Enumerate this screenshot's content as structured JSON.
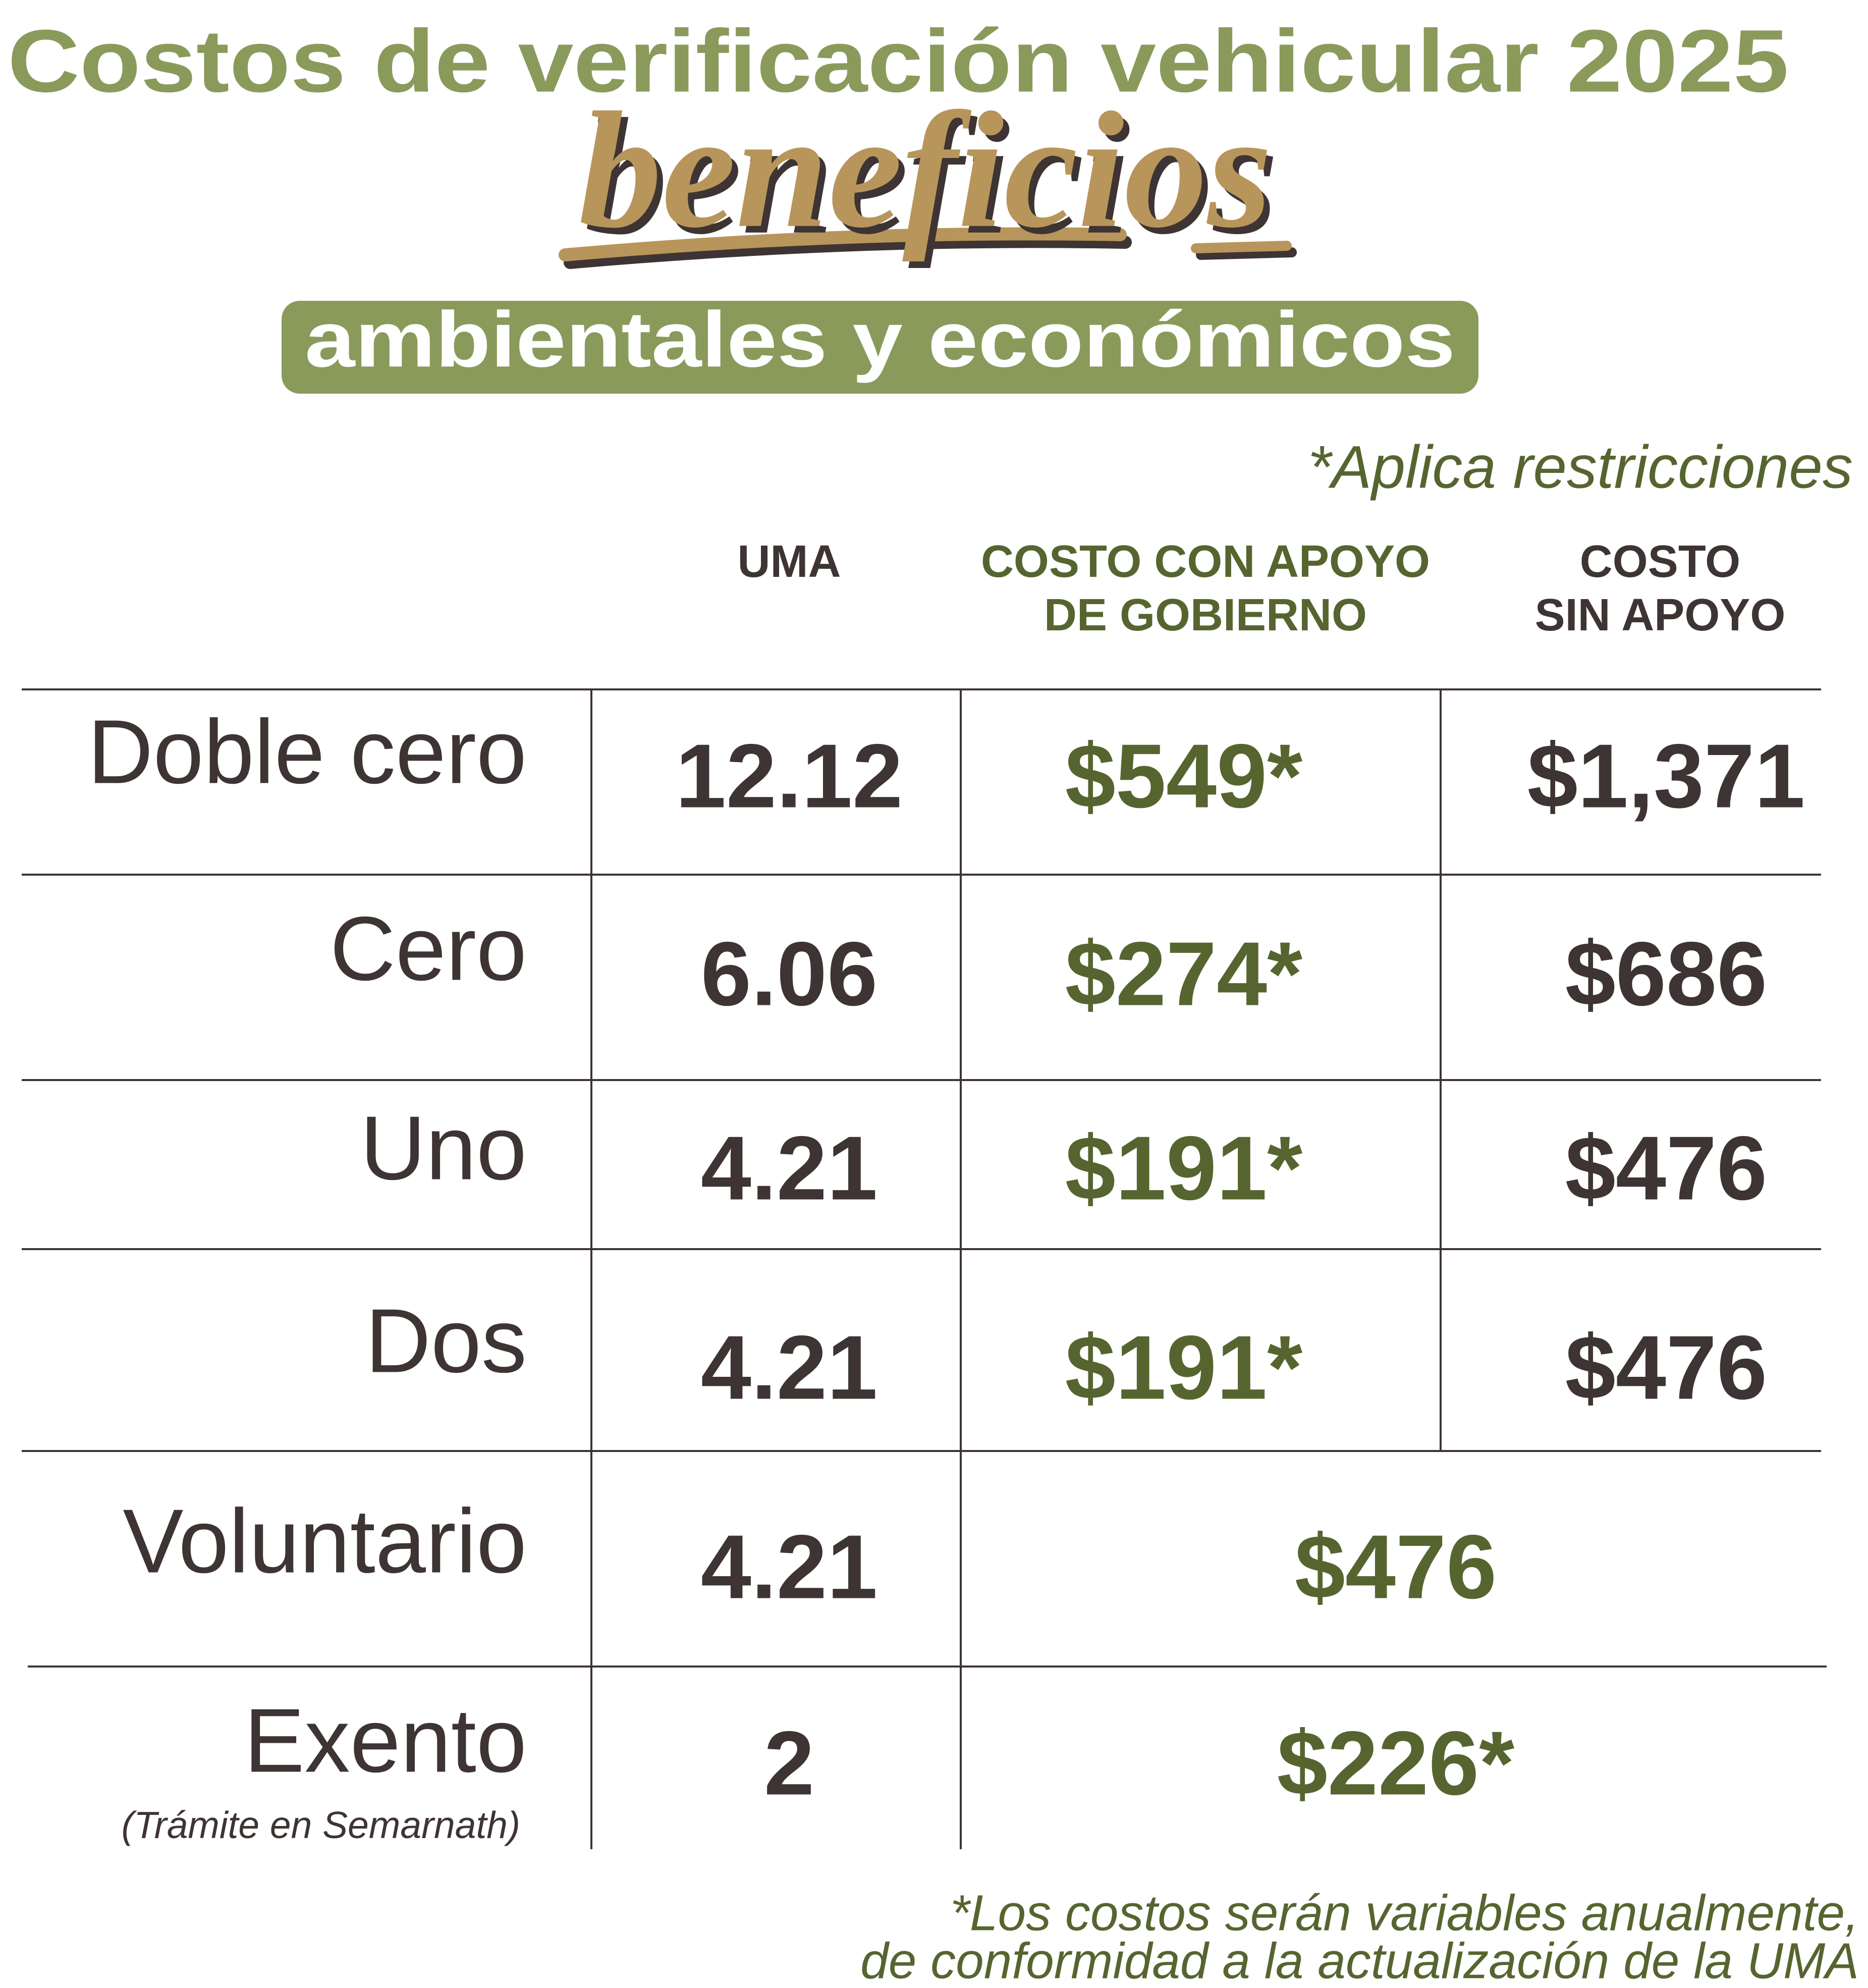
{
  "header": {
    "title": "Costos de verificación vehicular 2025",
    "script": "beneficios",
    "badge": "ambientales y económicos"
  },
  "note": "*Aplica restricciones",
  "table": {
    "columns": [
      [
        "UMA"
      ],
      [
        "COSTO CON APOYO",
        "DE GOBIERNO"
      ],
      [
        "COSTO",
        "SIN APOYO"
      ]
    ],
    "rows": [
      {
        "label": "Doble cero",
        "uma": "12.12",
        "con_apoyo": "$549*",
        "sin_apoyo": "$1,371"
      },
      {
        "label": "Cero",
        "uma": "6.06",
        "con_apoyo": "$274*",
        "sin_apoyo": "$686"
      },
      {
        "label": "Uno",
        "uma": "4.21",
        "con_apoyo": "$191*",
        "sin_apoyo": "$476"
      },
      {
        "label": "Dos",
        "uma": "4.21",
        "con_apoyo": "$191*",
        "sin_apoyo": "$476"
      },
      {
        "label": "Voluntario",
        "uma": "4.21",
        "costo": "$476"
      },
      {
        "label": "Exento",
        "sublabel": "(Trámite en Semarnath)",
        "uma": "2",
        "costo": "$226*"
      }
    ]
  },
  "footnote": [
    "*Los costos serán variables anualmente,",
    "de conformidad a la actualización de la UMA"
  ]
}
